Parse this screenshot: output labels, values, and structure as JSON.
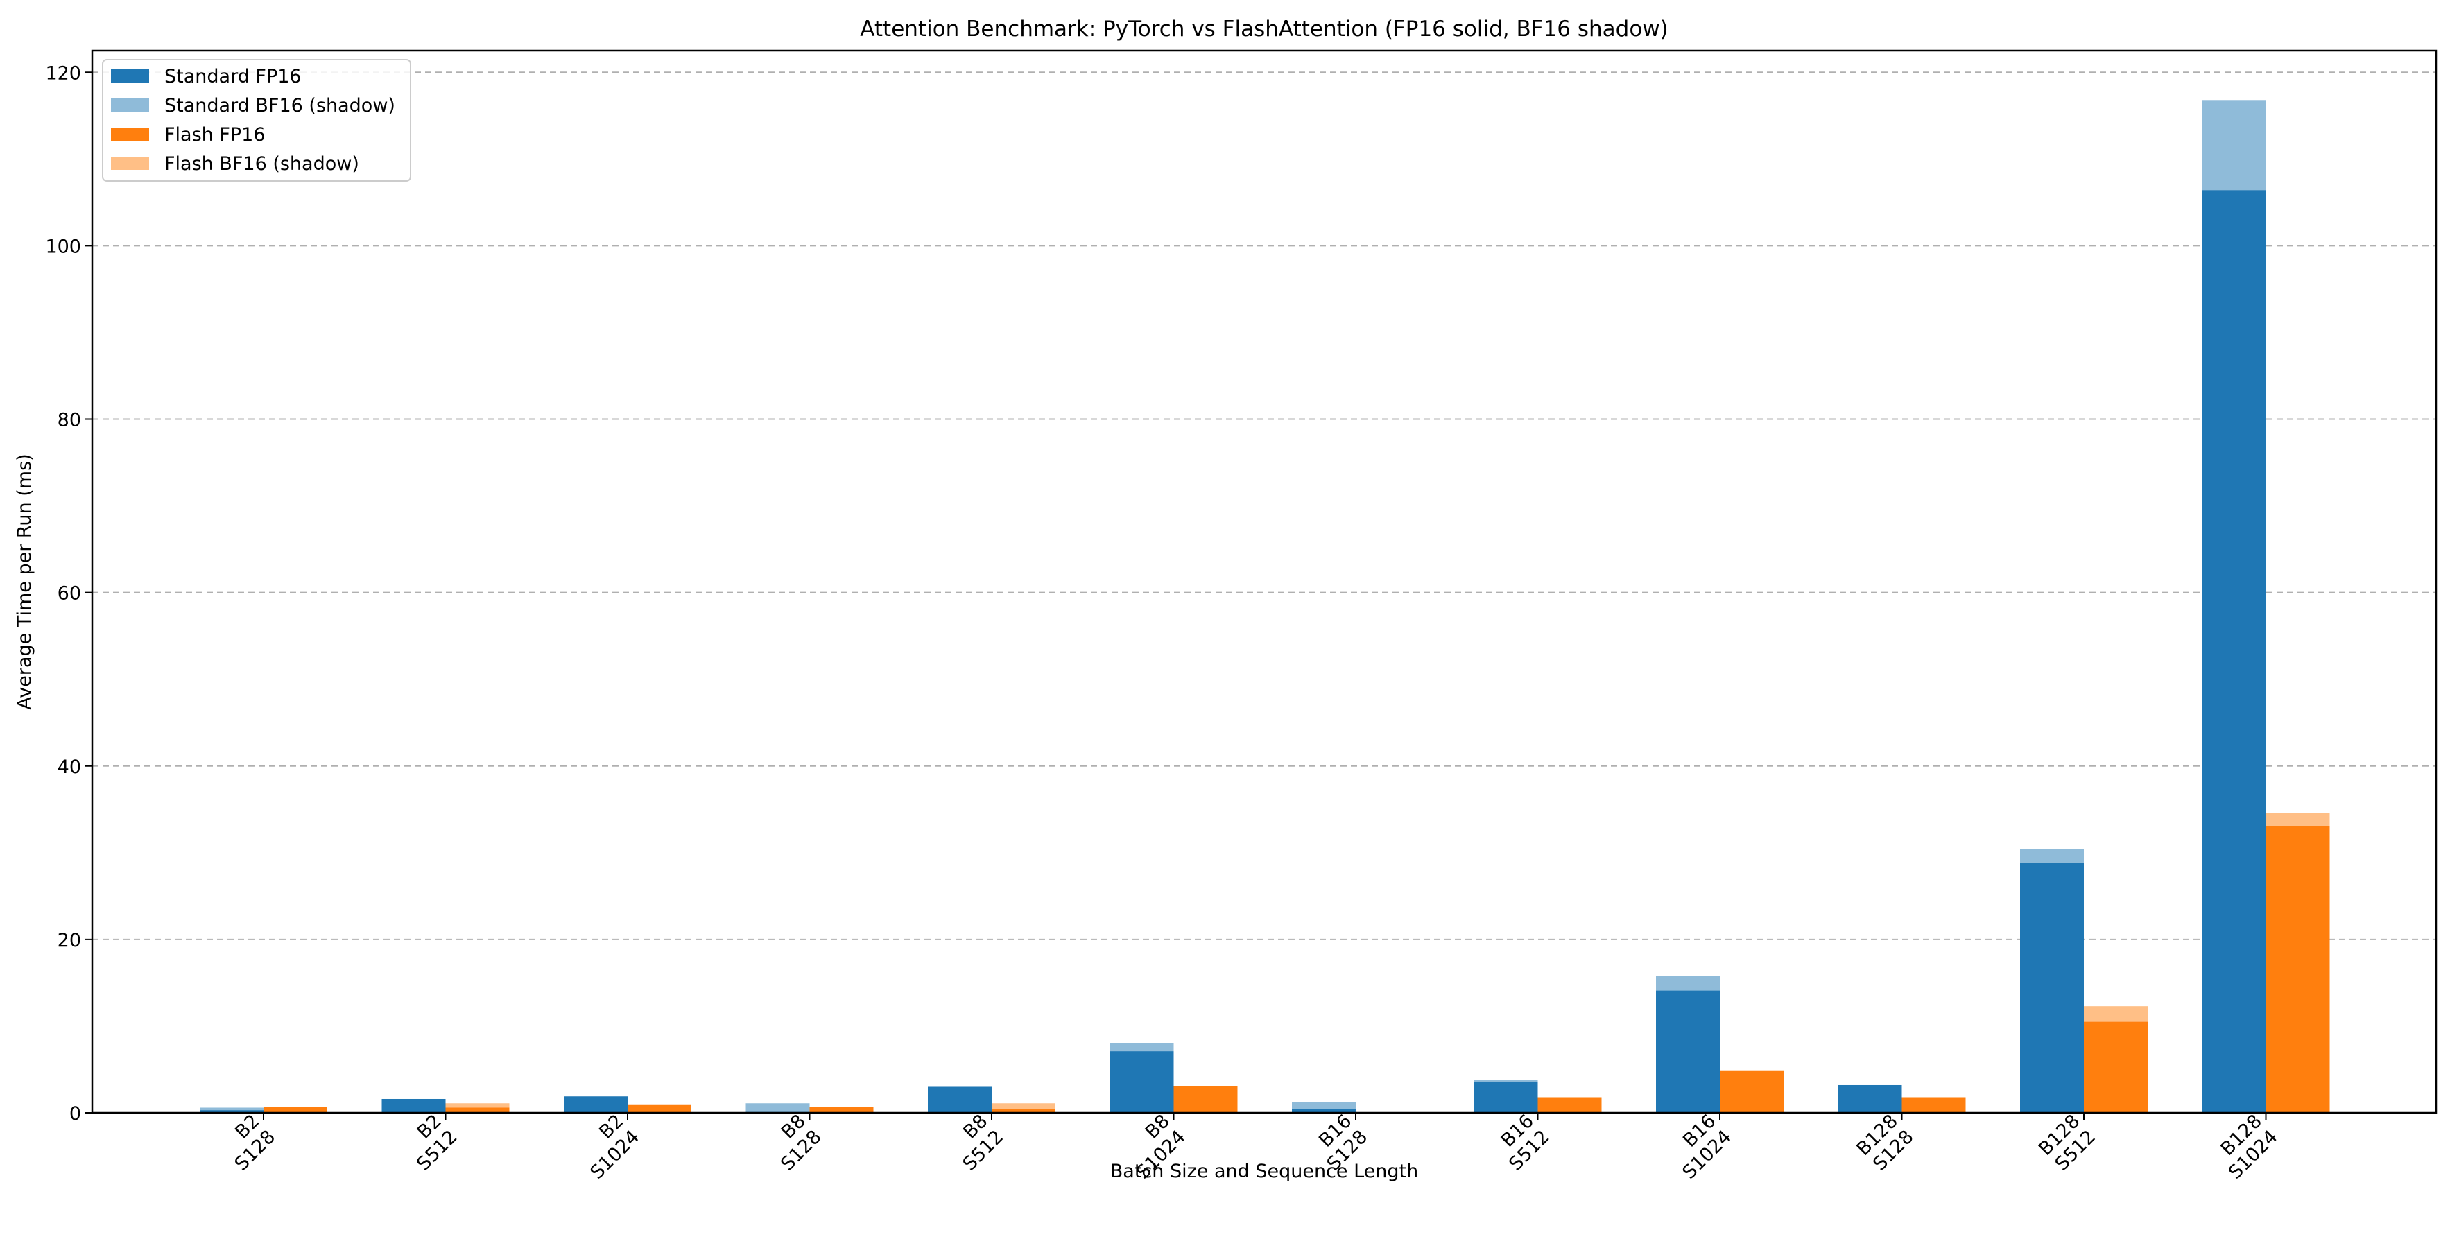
{
  "chart_data": {
    "type": "bar",
    "title": "Attention Benchmark: PyTorch vs FlashAttention (FP16 solid, BF16 shadow)",
    "xlabel": "Batch Size and Sequence Length",
    "ylabel": "Average Time per Run (ms)",
    "ylim": [
      0,
      122.5
    ],
    "yticks": [
      0,
      20,
      40,
      60,
      80,
      100,
      120
    ],
    "grid": "y-dashed",
    "legend_position": "upper-left",
    "categories": [
      [
        "B2",
        "S128"
      ],
      [
        "B2",
        "S512"
      ],
      [
        "B2",
        "S1024"
      ],
      [
        "B8",
        "S128"
      ],
      [
        "B8",
        "S512"
      ],
      [
        "B8",
        "S1024"
      ],
      [
        "B16",
        "S128"
      ],
      [
        "B16",
        "S512"
      ],
      [
        "B16",
        "S1024"
      ],
      [
        "B128",
        "S128"
      ],
      [
        "B128",
        "S512"
      ],
      [
        "B128",
        "S1024"
      ]
    ],
    "series": [
      {
        "name": "Standard FP16",
        "color": "#1f77b4",
        "group": "standard",
        "layer": "front",
        "values": [
          0.3,
          1.6,
          1.9,
          0.1,
          3.0,
          7.1,
          0.4,
          3.6,
          14.1,
          3.2,
          28.8,
          106.4
        ]
      },
      {
        "name": "Standard BF16 (shadow)",
        "color": "#8fbbd9",
        "group": "standard",
        "layer": "back",
        "values": [
          0.6,
          1.5,
          1.8,
          1.1,
          2.9,
          8.0,
          1.2,
          3.8,
          15.8,
          3.1,
          30.4,
          116.8
        ]
      },
      {
        "name": "Flash FP16",
        "color": "#ff7f0e",
        "group": "flash",
        "layer": "front",
        "values": [
          0.7,
          0.6,
          0.9,
          0.7,
          0.4,
          3.1,
          0.0,
          1.8,
          4.9,
          1.8,
          10.5,
          33.1
        ]
      },
      {
        "name": "Flash BF16 (shadow)",
        "color": "#ffbf86",
        "group": "flash",
        "layer": "back",
        "values": [
          0.6,
          1.1,
          0.8,
          0.6,
          1.1,
          2.9,
          0.0,
          1.7,
          4.8,
          1.7,
          12.3,
          34.6
        ]
      }
    ]
  }
}
